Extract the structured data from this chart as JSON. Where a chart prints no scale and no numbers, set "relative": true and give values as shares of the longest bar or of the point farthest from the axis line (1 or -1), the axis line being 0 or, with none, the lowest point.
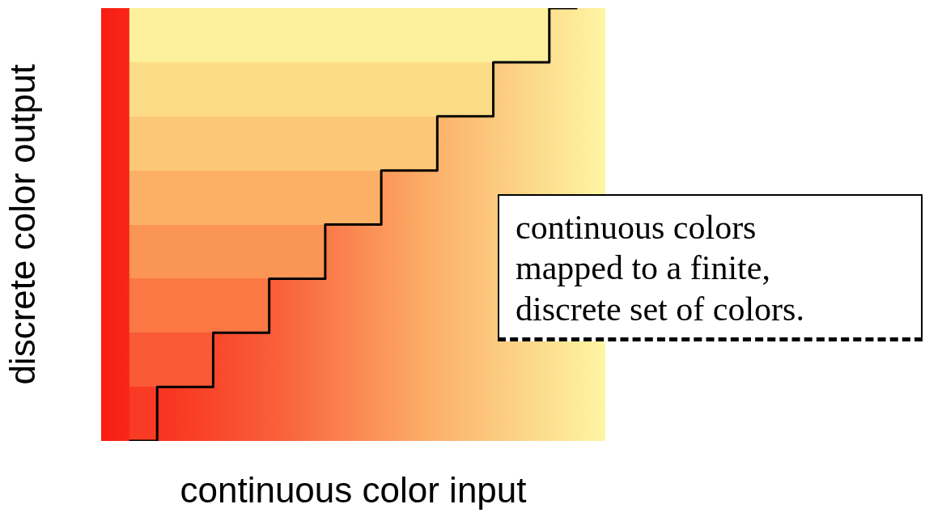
{
  "chart_data": {
    "type": "step",
    "xlabel": "continuous color input",
    "ylabel": "discrete color output",
    "categories": [
      null,
      null,
      null,
      null,
      null,
      null,
      null,
      null,
      null
    ],
    "values": [
      0,
      0.125,
      0.25,
      0.375,
      0.5,
      0.625,
      0.75,
      0.875,
      1
    ],
    "color": "#000000",
    "relative": true,
    "tick_labels": false,
    "grid": false,
    "legend": false,
    "marker": "none",
    "annotations": [
      "continuous colors\nmapped to a finite,\ndiscrete set of colors."
    ]
  }
}
